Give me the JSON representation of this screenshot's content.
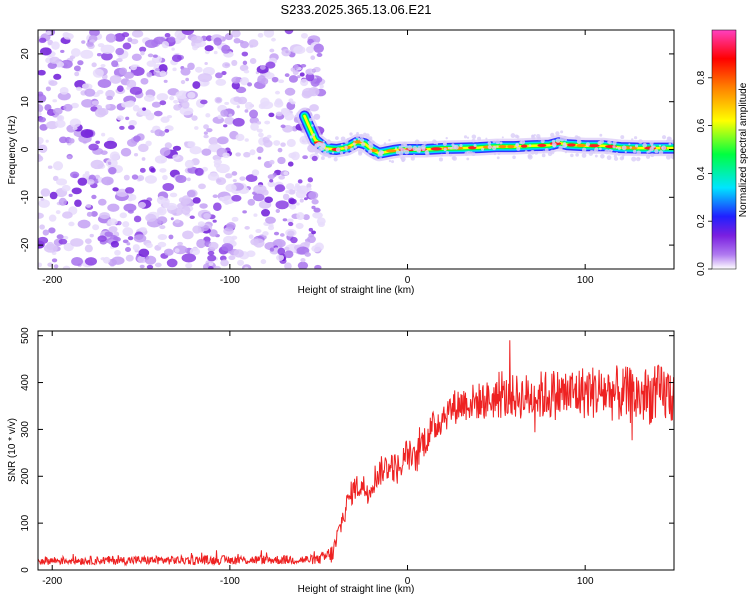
{
  "title": "S233.2025.365.13.06.E21",
  "chart_data": [
    {
      "type": "heatmap",
      "name": "spectrogram",
      "title": "S233.2025.365.13.06.E21",
      "xlabel": "Height of straight line (km)",
      "ylabel": "Frequency (Hz)",
      "xlim": [
        -208,
        150
      ],
      "ylim": [
        -25,
        25
      ],
      "xticks": [
        -200,
        -100,
        0,
        100
      ],
      "xtick_labels": [
        "-200",
        "-100",
        "0",
        "100"
      ],
      "yticks": [
        20,
        10,
        0,
        -10,
        -20
      ],
      "ytick_labels": [
        "20",
        "10",
        "0",
        "-10",
        "-20"
      ],
      "noise_region_x": [
        -208,
        -48
      ],
      "signal_track": {
        "x": [
          -58,
          -52,
          -46,
          -40,
          -34,
          -28,
          -24,
          -20,
          -16,
          -12,
          -8,
          -4,
          0,
          10,
          20,
          30,
          40,
          50,
          60,
          70,
          80,
          85,
          90,
          100,
          110,
          120,
          130,
          140,
          150
        ],
        "y": [
          7,
          2,
          0.2,
          0,
          0.4,
          1.6,
          1.2,
          0,
          -0.8,
          -0.5,
          -0.2,
          0,
          0,
          0,
          0.2,
          0.3,
          0.4,
          0.6,
          0.6,
          0.8,
          0.9,
          1.4,
          1.0,
          0.8,
          0.8,
          0.4,
          0.3,
          0.3,
          0.3
        ]
      },
      "colorbar": {
        "label": "Normalized spectral amplitude",
        "range": [
          0,
          1
        ],
        "ticks": [
          0.0,
          0.2,
          0.4,
          0.6,
          0.8
        ],
        "tick_labels": [
          "0.0",
          "0.2",
          "0.4",
          "0.6",
          "0.8"
        ],
        "colors": [
          "#ffffff",
          "#b07af0",
          "#7a1fe0",
          "#2020ff",
          "#00e5ff",
          "#00ff40",
          "#ffff00",
          "#ff8000",
          "#ff0000",
          "#ff40c0"
        ]
      }
    },
    {
      "type": "line",
      "name": "snr",
      "xlabel": "Height of straight line (km)",
      "ylabel": "SNR (10 * v/v)",
      "xlim": [
        -208,
        150
      ],
      "ylim": [
        0,
        510
      ],
      "xticks": [
        -200,
        -100,
        0,
        100
      ],
      "xtick_labels": [
        "-200",
        "-100",
        "0",
        "100"
      ],
      "yticks": [
        0,
        100,
        200,
        300,
        400,
        500
      ],
      "ytick_labels": [
        "0",
        "100",
        "200",
        "300",
        "400",
        "500"
      ],
      "color": "#ee2222",
      "envelope": {
        "x": [
          -208,
          -50,
          -42,
          -38,
          -35,
          -32,
          -30,
          -26,
          -22,
          -18,
          -14,
          -10,
          -6,
          -2,
          0,
          4,
          8,
          12,
          16,
          20,
          25,
          30,
          40,
          50,
          60,
          70,
          80,
          90,
          100,
          110,
          120,
          130,
          140,
          150
        ],
        "y": [
          20,
          22,
          35,
          90,
          130,
          160,
          175,
          180,
          170,
          200,
          215,
          225,
          215,
          235,
          250,
          230,
          270,
          290,
          310,
          330,
          345,
          355,
          360,
          365,
          370,
          370,
          375,
          375,
          380,
          380,
          375,
          370,
          375,
          375
        ]
      },
      "noise_amp": {
        "x": [
          -208,
          -50,
          -40,
          0,
          40,
          80,
          150
        ],
        "y": [
          9,
          10,
          25,
          35,
          40,
          55,
          65
        ]
      }
    }
  ]
}
